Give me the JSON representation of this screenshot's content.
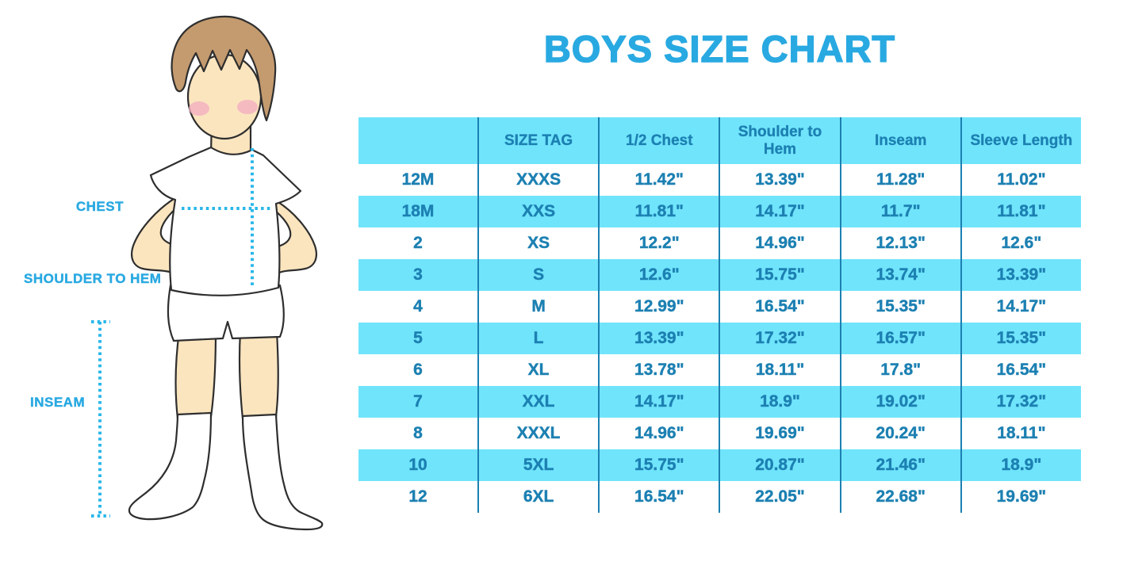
{
  "title": "BOYS SIZE CHART",
  "figure": {
    "description": "boy-with-measurement-lines",
    "labels": {
      "chest": "CHEST",
      "shoulder_to_hem": "SHOULDER TO HEM",
      "inseam": "INSEAM"
    }
  },
  "colors": {
    "accent_blue": "#29A9E1",
    "dotted_line_blue": "#29B7EA",
    "table_fill_cyan": "#70E4FB",
    "table_text_blue": "#1C80B2",
    "skin": "#FBE5BF",
    "hair": "#C49B6F",
    "cheek_pink": "#F2AFC1",
    "outline": "#2E2E2E"
  },
  "chart_data": {
    "type": "table",
    "title": "BOYS SIZE CHART",
    "columns": [
      "",
      "SIZE TAG",
      "1/2 Chest",
      "Shoulder to Hem",
      "Inseam",
      "Sleeve Length"
    ],
    "rows": [
      [
        "12M",
        "XXXS",
        "11.42\"",
        "13.39\"",
        "11.28\"",
        "11.02\""
      ],
      [
        "18M",
        "XXS",
        "11.81\"",
        "14.17\"",
        "11.7\"",
        "11.81\""
      ],
      [
        "2",
        "XS",
        "12.2\"",
        "14.96\"",
        "12.13\"",
        "12.6\""
      ],
      [
        "3",
        "S",
        "12.6\"",
        "15.75\"",
        "13.74\"",
        "13.39\""
      ],
      [
        "4",
        "M",
        "12.99\"",
        "16.54\"",
        "15.35\"",
        "14.17\""
      ],
      [
        "5",
        "L",
        "13.39\"",
        "17.32\"",
        "16.57\"",
        "15.35\""
      ],
      [
        "6",
        "XL",
        "13.78\"",
        "18.11\"",
        "17.8\"",
        "16.54\""
      ],
      [
        "7",
        "XXL",
        "14.17\"",
        "18.9\"",
        "19.02\"",
        "17.32\""
      ],
      [
        "8",
        "XXXL",
        "14.96\"",
        "19.69\"",
        "20.24\"",
        "18.11\""
      ],
      [
        "10",
        "5XL",
        "15.75\"",
        "20.87\"",
        "21.46\"",
        "18.9\""
      ],
      [
        "12",
        "6XL",
        "16.54\"",
        "22.05\"",
        "22.68\"",
        "19.69\""
      ]
    ]
  }
}
